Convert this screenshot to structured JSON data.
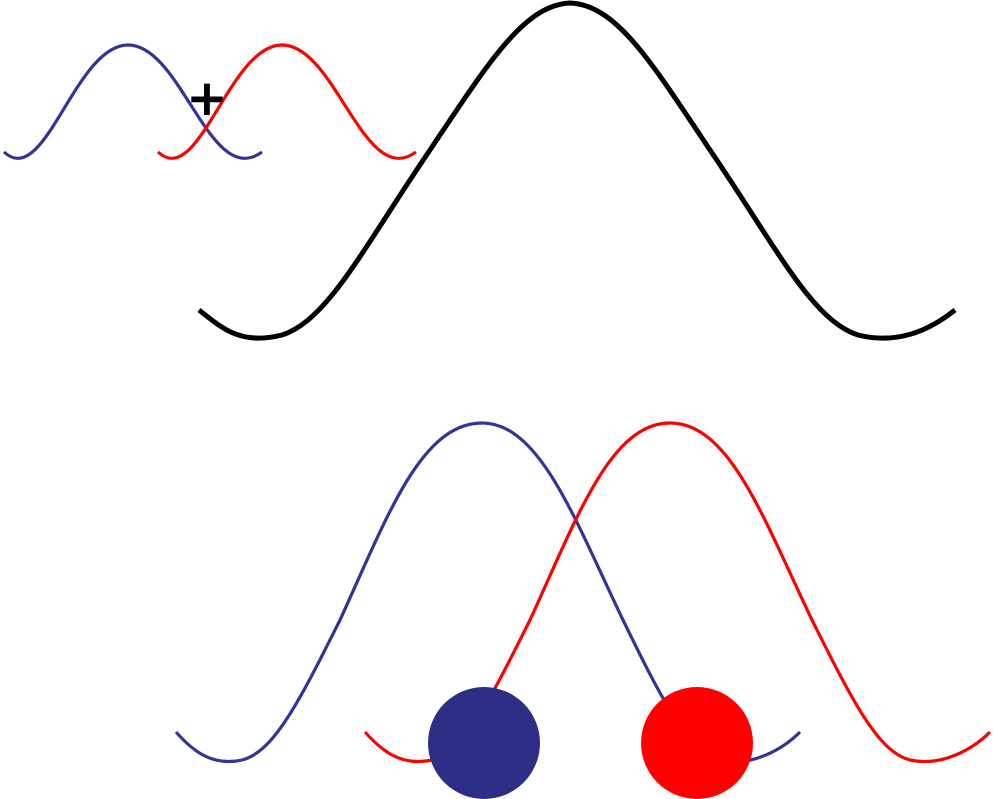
{
  "colors": {
    "blue_wave": "#33339A",
    "red_wave": "#FF0000",
    "black_wave": "#000000",
    "blue_ball": "#2E2E87",
    "red_ball": "#FF0000",
    "background": "#FFFFFF"
  },
  "diagram": {
    "plus_symbol": "+"
  }
}
